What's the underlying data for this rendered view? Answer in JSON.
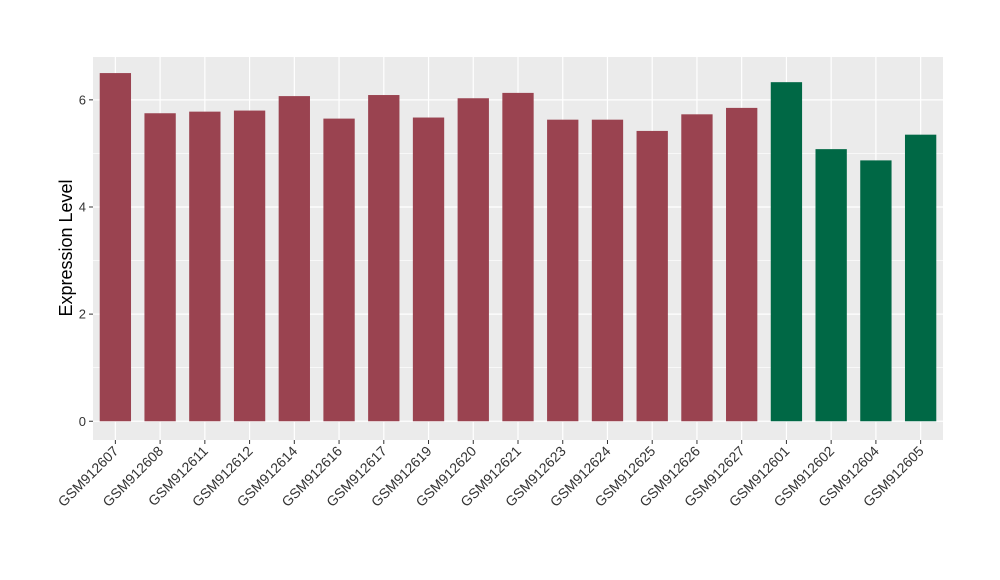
{
  "chart_data": {
    "type": "bar",
    "title": "",
    "xlabel": "",
    "ylabel": "Expression Level",
    "ylim": [
      -0.35,
      6.8
    ],
    "yticks": [
      0,
      2,
      4,
      6
    ],
    "grid": true,
    "categories": [
      "GSM912607",
      "GSM912608",
      "GSM912611",
      "GSM912612",
      "GSM912614",
      "GSM912616",
      "GSM912617",
      "GSM912619",
      "GSM912620",
      "GSM912621",
      "GSM912623",
      "GSM912624",
      "GSM912625",
      "GSM912626",
      "GSM912627",
      "GSM912601",
      "GSM912602",
      "GSM912604",
      "GSM912605"
    ],
    "values": [
      6.5,
      5.75,
      5.78,
      5.8,
      6.07,
      5.65,
      6.09,
      5.67,
      6.03,
      6.13,
      5.63,
      5.63,
      5.42,
      5.73,
      5.85,
      6.33,
      5.08,
      4.87,
      5.35
    ],
    "groups": [
      "a",
      "a",
      "a",
      "a",
      "a",
      "a",
      "a",
      "a",
      "a",
      "a",
      "a",
      "a",
      "a",
      "a",
      "a",
      "b",
      "b",
      "b",
      "b"
    ],
    "group_colors": {
      "a": "#9a4350",
      "b": "#006845"
    },
    "panel_background": "#ebebeb",
    "gridline_color": "#ffffff"
  }
}
